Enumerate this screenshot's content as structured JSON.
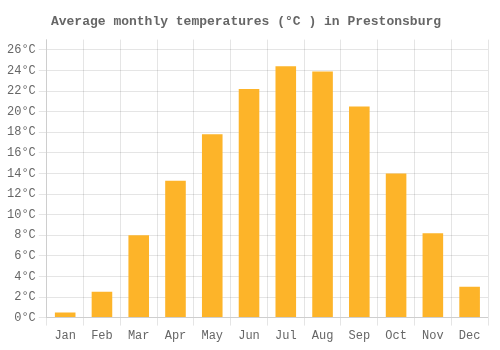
{
  "chart_data": {
    "type": "bar",
    "title": "Average monthly temperatures (°C ) in Prestonsburg",
    "categories": [
      "Jan",
      "Feb",
      "Mar",
      "Apr",
      "May",
      "Jun",
      "Jul",
      "Aug",
      "Sep",
      "Oct",
      "Nov",
      "Dec"
    ],
    "values": [
      0.5,
      2.5,
      8.0,
      13.3,
      17.8,
      22.2,
      24.4,
      23.9,
      20.5,
      14.0,
      8.2,
      3.0
    ],
    "color": "#FDB429",
    "ylim": [
      0,
      27
    ],
    "yticks": [
      {
        "value": 0,
        "label": "0°C"
      },
      {
        "value": 2,
        "label": "2°C"
      },
      {
        "value": 4,
        "label": "4°C"
      },
      {
        "value": 6,
        "label": "6°C"
      },
      {
        "value": 8,
        "label": "8°C"
      },
      {
        "value": 10,
        "label": "10°C"
      },
      {
        "value": 12,
        "label": "12°C"
      },
      {
        "value": 14,
        "label": "14°C"
      },
      {
        "value": 16,
        "label": "16°C"
      },
      {
        "value": 18,
        "label": "18°C"
      },
      {
        "value": 20,
        "label": "20°C"
      },
      {
        "value": 22,
        "label": "22°C"
      },
      {
        "value": 24,
        "label": "24°C"
      },
      {
        "value": 26,
        "label": "26°C"
      }
    ],
    "grid": true
  }
}
